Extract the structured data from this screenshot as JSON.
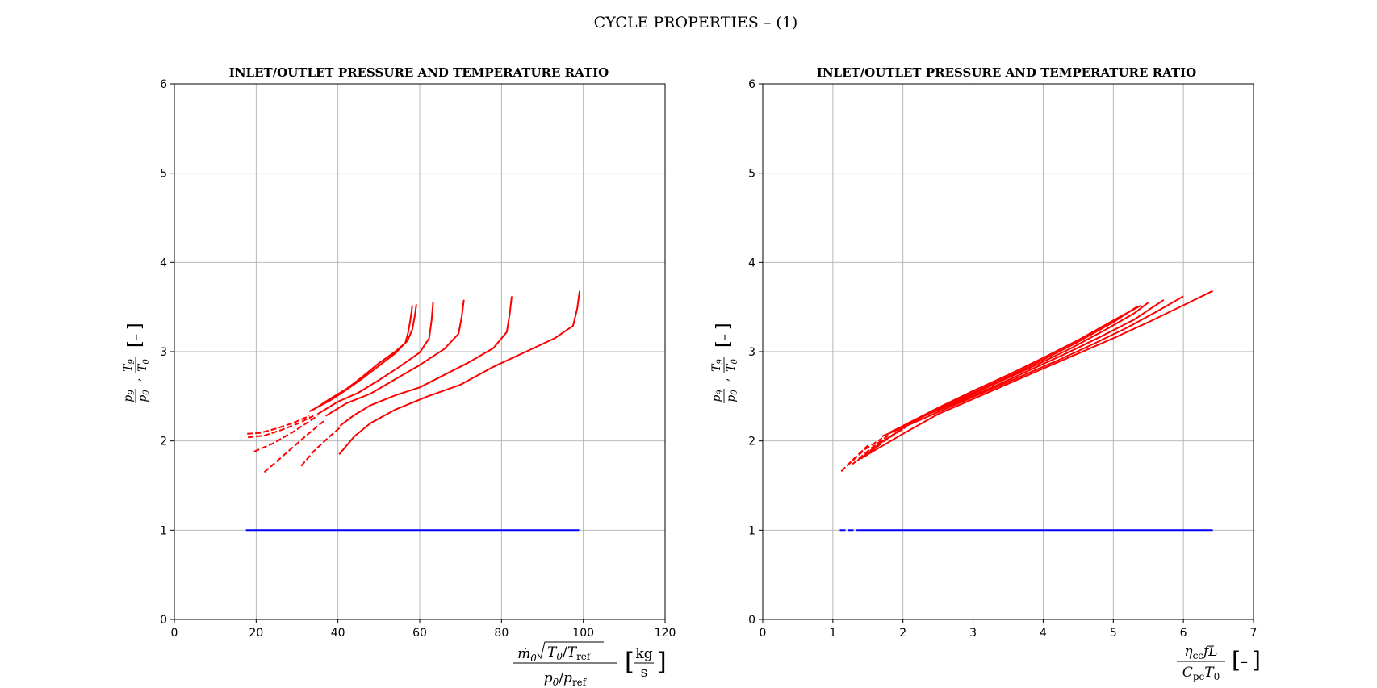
{
  "figure_title": "CYCLE PROPERTIES  – (1)",
  "colors": {
    "pressure": "#ff0000",
    "temperature": "#0000ff",
    "grid": "#b0b0b0"
  },
  "chart_data": [
    {
      "type": "line",
      "title": "INLET/OUTLET PRESSURE AND TEMPERATURE RATIO",
      "xlabel": "ṁ₀√(T₀/T_ref) / (p₀/p_ref)  [kg/s]",
      "ylabel": "p₉/p₀ , T₉/T₀  [–]",
      "xlim": [
        0,
        120
      ],
      "ylim": [
        0,
        6
      ],
      "xticks": [
        0,
        20,
        40,
        60,
        80,
        100,
        120
      ],
      "yticks": [
        0,
        1,
        2,
        3,
        4,
        5,
        6
      ],
      "grid": true,
      "series": [
        {
          "name": "p9/p0 curve 1 (dashed)",
          "style": "dashed",
          "color": "pressure",
          "x": [
            17.8,
            21,
            25,
            29,
            33
          ],
          "y": [
            2.08,
            2.09,
            2.14,
            2.2,
            2.28
          ]
        },
        {
          "name": "p9/p0 curve 1",
          "style": "solid",
          "color": "pressure",
          "x": [
            33,
            38,
            42,
            46,
            50,
            54,
            56.5,
            57.2,
            57.7,
            58.0,
            58.2
          ],
          "y": [
            2.33,
            2.45,
            2.57,
            2.7,
            2.84,
            2.98,
            3.1,
            3.22,
            3.35,
            3.45,
            3.52
          ]
        },
        {
          "name": "p9/p0 curve 2 (dashed)",
          "style": "dashed",
          "color": "pressure",
          "x": [
            18,
            22,
            26,
            30,
            34
          ],
          "y": [
            2.04,
            2.06,
            2.12,
            2.19,
            2.28
          ]
        },
        {
          "name": "p9/p0 curve 2",
          "style": "solid",
          "color": "pressure",
          "x": [
            34,
            38,
            42,
            46,
            50,
            54,
            57,
            58.2,
            58.8,
            59.2
          ],
          "y": [
            2.35,
            2.47,
            2.58,
            2.72,
            2.87,
            3.0,
            3.12,
            3.25,
            3.4,
            3.53
          ]
        },
        {
          "name": "p9/p0 curve 3 (dashed)",
          "style": "dashed",
          "color": "pressure",
          "x": [
            19.5,
            24,
            29,
            35
          ],
          "y": [
            1.88,
            1.97,
            2.1,
            2.28
          ]
        },
        {
          "name": "p9/p0 curve 3",
          "style": "solid",
          "color": "pressure",
          "x": [
            35,
            40,
            45,
            50,
            55,
            60,
            62.3,
            62.9,
            63.3
          ],
          "y": [
            2.3,
            2.44,
            2.54,
            2.68,
            2.83,
            2.99,
            3.15,
            3.35,
            3.56
          ]
        },
        {
          "name": "p9/p0 curve 4 (dashed)",
          "style": "dashed",
          "color": "pressure",
          "x": [
            22,
            27,
            32,
            37
          ],
          "y": [
            1.65,
            1.85,
            2.05,
            2.24
          ]
        },
        {
          "name": "p9/p0 curve 4",
          "style": "solid",
          "color": "pressure",
          "x": [
            37,
            42,
            48,
            54,
            60,
            66,
            69.5,
            70.3,
            70.8
          ],
          "y": [
            2.28,
            2.42,
            2.53,
            2.69,
            2.85,
            3.03,
            3.2,
            3.4,
            3.58
          ]
        },
        {
          "name": "p9/p0 curve 5 (dashed)",
          "style": "dashed",
          "color": "pressure",
          "x": [
            31,
            34,
            37.5,
            40.5
          ],
          "y": [
            1.72,
            1.88,
            2.03,
            2.15
          ]
        },
        {
          "name": "p9/p0 curve 5",
          "style": "solid",
          "color": "pressure",
          "x": [
            40.5,
            44,
            48,
            54,
            60,
            66,
            72,
            78,
            81.3,
            82.0,
            82.5
          ],
          "y": [
            2.17,
            2.29,
            2.4,
            2.51,
            2.6,
            2.74,
            2.88,
            3.04,
            3.22,
            3.42,
            3.62
          ]
        },
        {
          "name": "p9/p0 curve 6",
          "style": "solid",
          "color": "pressure",
          "x": [
            40.3,
            44,
            48,
            54,
            62,
            70,
            78,
            86,
            93,
            97.5,
            98.5,
            99.1
          ],
          "y": [
            1.85,
            2.05,
            2.2,
            2.35,
            2.5,
            2.63,
            2.83,
            3.0,
            3.15,
            3.29,
            3.48,
            3.68
          ]
        },
        {
          "name": "T9/T0",
          "style": "solid",
          "color": "temperature",
          "x": [
            17.5,
            99
          ],
          "y": [
            1.0,
            1.0
          ]
        }
      ]
    },
    {
      "type": "line",
      "title": "INLET/OUTLET PRESSURE AND TEMPERATURE RATIO",
      "xlabel": "η_cc f L / (C_pc T₀)  [–]",
      "ylabel": "p₉/p₀ , T₉/T₀  [–]",
      "xlim": [
        0,
        7
      ],
      "ylim": [
        0,
        6
      ],
      "xticks": [
        0,
        1,
        2,
        3,
        4,
        5,
        6,
        7
      ],
      "yticks": [
        0,
        1,
        2,
        3,
        4,
        5,
        6
      ],
      "grid": true,
      "series": [
        {
          "name": "p9/p0 curve 1 (dashed)",
          "style": "dashed",
          "color": "pressure",
          "x": [
            1.12,
            1.3,
            1.5
          ],
          "y": [
            1.66,
            1.8,
            1.95
          ]
        },
        {
          "name": "p9/p0 curve 1",
          "style": "solid",
          "color": "pressure",
          "x": [
            1.5,
            2.0,
            2.5,
            3.0,
            3.5,
            4.0,
            4.5,
            5.0,
            5.5,
            6.0,
            6.42
          ],
          "y": [
            1.85,
            2.08,
            2.3,
            2.47,
            2.64,
            2.81,
            2.98,
            3.15,
            3.33,
            3.52,
            3.68
          ]
        },
        {
          "name": "p9/p0 curve 2 (dashed)",
          "style": "dashed",
          "color": "pressure",
          "x": [
            1.2,
            1.45,
            1.7
          ],
          "y": [
            1.72,
            1.9,
            2.03
          ]
        },
        {
          "name": "p9/p0 curve 2",
          "style": "solid",
          "color": "pressure",
          "x": [
            1.7,
            2.2,
            2.7,
            3.2,
            3.7,
            4.2,
            4.7,
            5.2,
            5.6,
            6.0
          ],
          "y": [
            2.05,
            2.22,
            2.39,
            2.56,
            2.73,
            2.9,
            3.08,
            3.27,
            3.44,
            3.62
          ]
        },
        {
          "name": "p9/p0 curve 3 (dashed)",
          "style": "dashed",
          "color": "pressure",
          "x": [
            1.28,
            1.55,
            1.82
          ],
          "y": [
            1.74,
            1.92,
            2.08
          ]
        },
        {
          "name": "p9/p0 curve 3",
          "style": "solid",
          "color": "pressure",
          "x": [
            1.82,
            2.3,
            2.8,
            3.3,
            3.8,
            4.3,
            4.8,
            5.3,
            5.72
          ],
          "y": [
            2.1,
            2.28,
            2.44,
            2.61,
            2.79,
            2.97,
            3.16,
            3.36,
            3.58
          ]
        },
        {
          "name": "p9/p0 curve 4 (dashed)",
          "style": "dashed",
          "color": "pressure",
          "x": [
            1.35,
            1.65,
            1.95
          ],
          "y": [
            1.78,
            1.96,
            2.12
          ]
        },
        {
          "name": "p9/p0 curve 4",
          "style": "solid",
          "color": "pressure",
          "x": [
            1.95,
            2.4,
            2.9,
            3.4,
            3.9,
            4.4,
            4.9,
            5.3,
            5.5
          ],
          "y": [
            2.14,
            2.32,
            2.49,
            2.67,
            2.85,
            3.04,
            3.25,
            3.43,
            3.55
          ]
        },
        {
          "name": "p9/p0 curve 5 (dashed)",
          "style": "dashed",
          "color": "pressure",
          "x": [
            1.4,
            1.7,
            2.0
          ],
          "y": [
            1.8,
            1.99,
            2.14
          ]
        },
        {
          "name": "p9/p0 curve 5",
          "style": "solid",
          "color": "pressure",
          "x": [
            2.0,
            2.5,
            3.0,
            3.5,
            4.0,
            4.5,
            5.0,
            5.35
          ],
          "y": [
            2.17,
            2.36,
            2.54,
            2.72,
            2.91,
            3.11,
            3.33,
            3.51
          ]
        },
        {
          "name": "p9/p0 curve 6 (dashed)",
          "style": "dashed",
          "color": "pressure",
          "x": [
            1.45,
            1.75,
            2.05
          ],
          "y": [
            1.82,
            2.01,
            2.16
          ]
        },
        {
          "name": "p9/p0 curve 6",
          "style": "solid",
          "color": "pressure",
          "x": [
            2.05,
            2.5,
            3.0,
            3.5,
            4.0,
            4.5,
            5.0,
            5.4
          ],
          "y": [
            2.19,
            2.37,
            2.56,
            2.74,
            2.93,
            3.13,
            3.35,
            3.52
          ]
        },
        {
          "name": "T9/T0 (dashed)",
          "style": "dashed",
          "color": "temperature",
          "x": [
            1.1,
            1.35
          ],
          "y": [
            1.0,
            1.0
          ]
        },
        {
          "name": "T9/T0",
          "style": "solid",
          "color": "temperature",
          "x": [
            1.35,
            6.42
          ],
          "y": [
            1.0,
            1.0
          ]
        }
      ]
    }
  ]
}
